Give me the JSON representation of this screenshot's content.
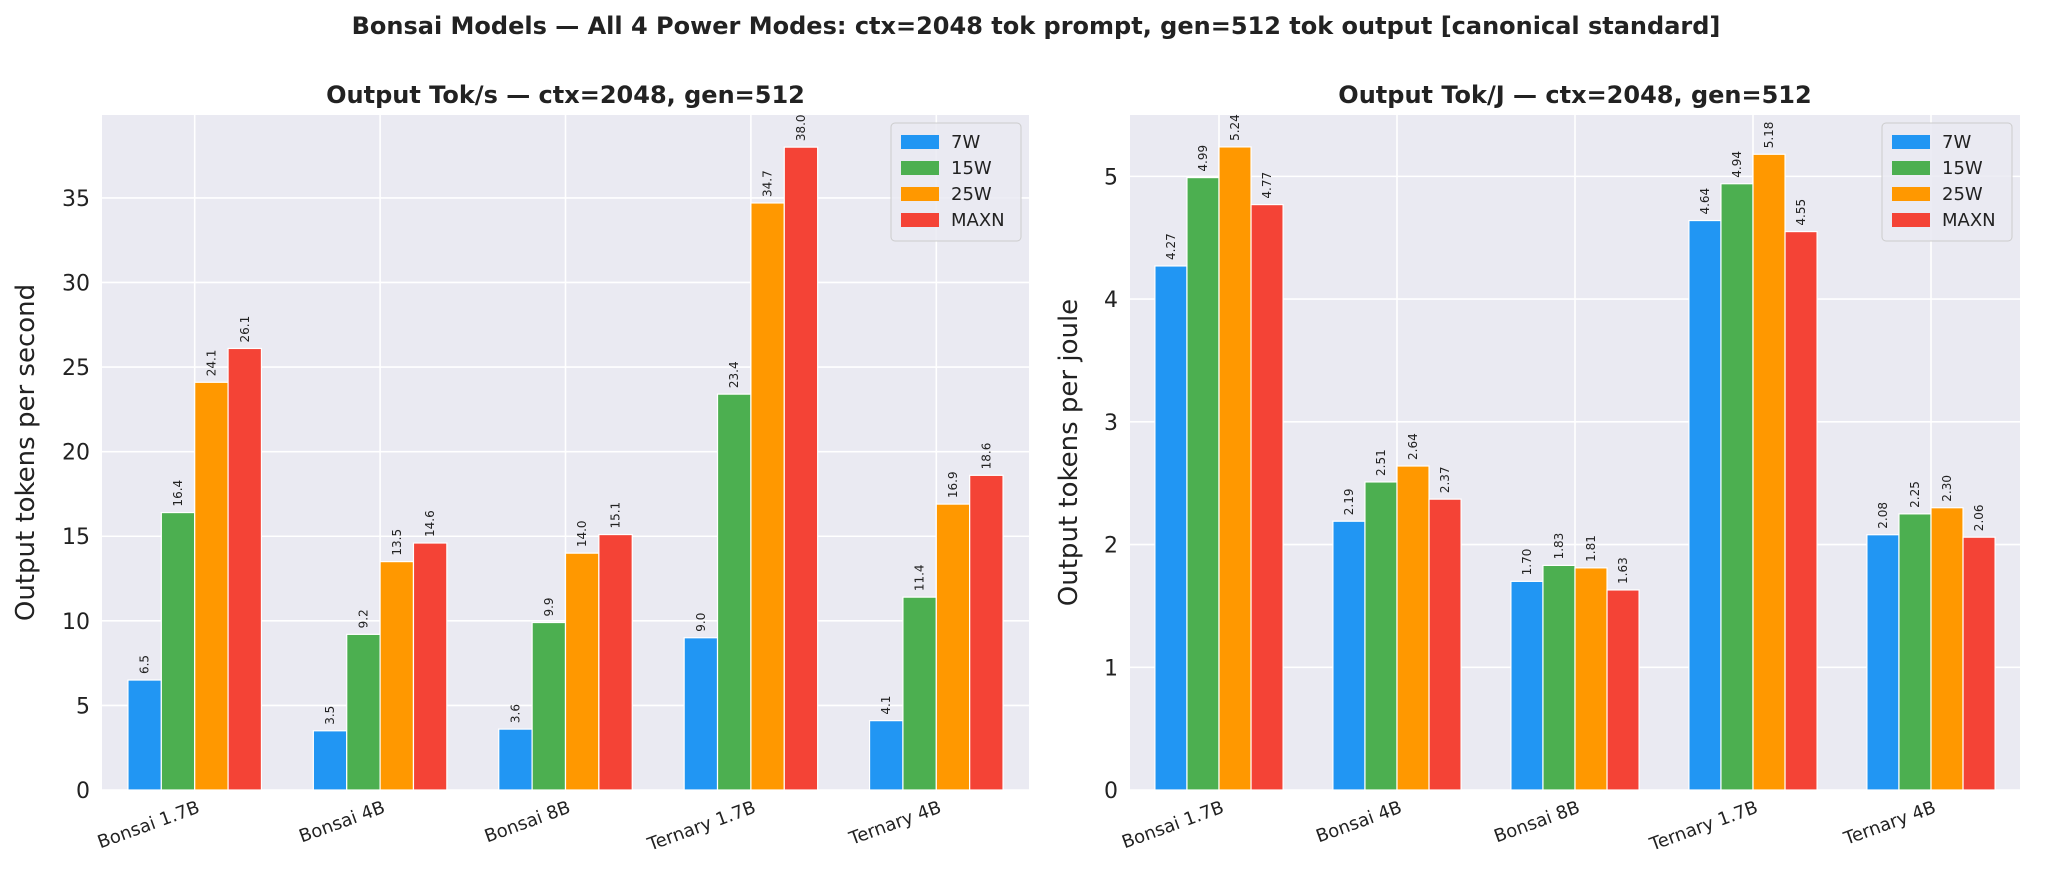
{
  "title": "Bonsai Models — All 4 Power Modes: ctx=2048 tok prompt, gen=512 tok output  [canonical standard]",
  "colors": {
    "7W": "#2196F3",
    "15W": "#4CAF50",
    "25W": "#FF9800",
    "MAXN": "#F44336",
    "plot_bg": "#EAEAF2",
    "grid": "#FFFFFF"
  },
  "chart_data": [
    {
      "type": "bar",
      "title": "Output Tok/s — ctx=2048, gen=512",
      "xlabel": "",
      "ylabel": "Output tokens per second",
      "categories": [
        "Bonsai 1.7B",
        "Bonsai 4B",
        "Bonsai 8B",
        "Ternary 1.7B",
        "Ternary 4B"
      ],
      "ylim": [
        0,
        39.9
      ],
      "yticks": [
        0,
        5,
        10,
        15,
        20,
        25,
        30,
        35
      ],
      "ytick_labels": [
        "0",
        "5",
        "10",
        "15",
        "20",
        "25",
        "30",
        "35"
      ],
      "legend": "top-right",
      "grid": true,
      "series": [
        {
          "name": "7W",
          "values": [
            6.5,
            3.5,
            3.6,
            9.0,
            4.1
          ],
          "labels": [
            "6.5",
            "3.5",
            "3.6",
            "9.0",
            "4.1"
          ]
        },
        {
          "name": "15W",
          "values": [
            16.4,
            9.2,
            9.9,
            23.4,
            11.4
          ],
          "labels": [
            "16.4",
            "9.2",
            "9.9",
            "23.4",
            "11.4"
          ]
        },
        {
          "name": "25W",
          "values": [
            24.1,
            13.5,
            14.0,
            34.7,
            16.9
          ],
          "labels": [
            "24.1",
            "13.5",
            "14.0",
            "34.7",
            "16.9"
          ]
        },
        {
          "name": "MAXN",
          "values": [
            26.1,
            14.6,
            15.1,
            38.0,
            18.6
          ],
          "labels": [
            "26.1",
            "14.6",
            "15.1",
            "38.0",
            "18.6"
          ]
        }
      ]
    },
    {
      "type": "bar",
      "title": "Output Tok/J — ctx=2048, gen=512",
      "xlabel": "",
      "ylabel": "Output tokens per joule",
      "categories": [
        "Bonsai 1.7B",
        "Bonsai 4B",
        "Bonsai 8B",
        "Ternary 1.7B",
        "Ternary 4B"
      ],
      "ylim": [
        0,
        5.5
      ],
      "yticks": [
        0,
        1,
        2,
        3,
        4,
        5
      ],
      "ytick_labels": [
        "0",
        "1",
        "2",
        "3",
        "4",
        "5"
      ],
      "legend": "top-right",
      "grid": true,
      "series": [
        {
          "name": "7W",
          "values": [
            4.27,
            2.19,
            1.7,
            4.64,
            2.08
          ],
          "labels": [
            "4.27",
            "2.19",
            "1.70",
            "4.64",
            "2.08"
          ]
        },
        {
          "name": "15W",
          "values": [
            4.99,
            2.51,
            1.83,
            4.94,
            2.25
          ],
          "labels": [
            "4.99",
            "2.51",
            "1.83",
            "4.94",
            "2.25"
          ]
        },
        {
          "name": "25W",
          "values": [
            5.24,
            2.64,
            1.81,
            5.18,
            2.3
          ],
          "labels": [
            "5.24",
            "2.64",
            "1.81",
            "5.18",
            "2.30"
          ]
        },
        {
          "name": "MAXN",
          "values": [
            4.77,
            2.37,
            1.63,
            4.55,
            2.06
          ],
          "labels": [
            "4.77",
            "2.37",
            "1.63",
            "4.55",
            "2.06"
          ]
        }
      ]
    }
  ]
}
